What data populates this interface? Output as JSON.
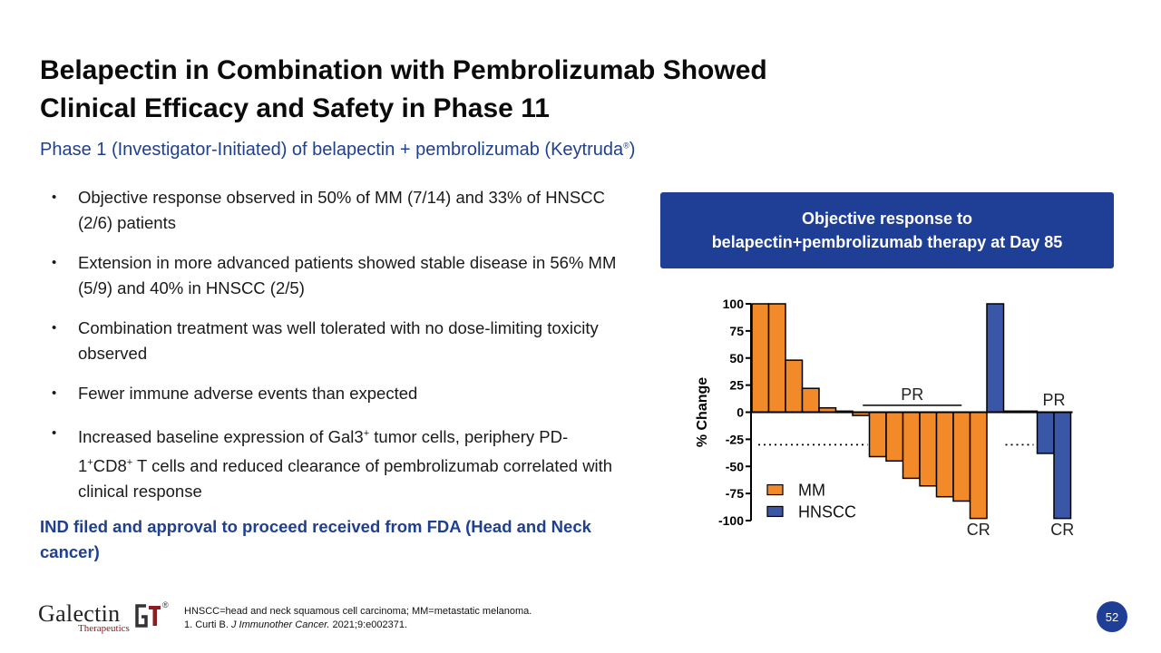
{
  "title": {
    "line1": "Belapectin in Combination with Pembrolizumab Showed",
    "line2": "Clinical Efficacy and Safety in Phase 11"
  },
  "subtitle": {
    "text": "Phase 1 (Investigator-Initiated) of belapectin + pembrolizumab (Keytruda",
    "reg": "®",
    "close": ")"
  },
  "bullet_glyph": "•",
  "bullets": [
    [
      "Objective response observed in 50% of MM (7/14) and 33% of HNSCC (2/6) patients"
    ],
    [
      "Extension in more advanced patients showed stable disease in 56% MM (5/9) and 40% in HNSCC (2/5)"
    ],
    [
      "Combination treatment was well tolerated with no dose-limiting toxicity observed"
    ],
    [
      "Fewer immune adverse events than expected"
    ],
    [
      "Increased baseline expression of Gal3",
      "+",
      " tumor cells, periphery PD-1",
      "+",
      "CD8",
      "+",
      " T cells and reduced clearance of pembrolizumab correlated with clinical response"
    ]
  ],
  "callout": "IND filed and approval to proceed received from FDA (Head and Neck cancer)",
  "box": {
    "line1": "Objective response to",
    "line2": "belapectin+pembrolizumab therapy at Day 85"
  },
  "chart_data": {
    "type": "bar",
    "title": "",
    "xlabel": "",
    "ylabel": "% Change",
    "ylim": [
      -100,
      100
    ],
    "yticks": [
      100,
      75,
      50,
      25,
      0,
      -25,
      -50,
      -75,
      -100
    ],
    "reference_line": -30,
    "series": [
      {
        "name": "MM",
        "color": "#f28a2a",
        "values": [
          100,
          100,
          48,
          22,
          4,
          1,
          -3,
          -41,
          -45,
          -61,
          -68,
          -78,
          -82,
          -98
        ]
      },
      {
        "name": "HNSCC",
        "color": "#3a57a7",
        "values": [
          100,
          1,
          1,
          -38,
          -98
        ]
      }
    ],
    "annotations": [
      "PR",
      "PR",
      "CR",
      "CR"
    ],
    "legend": [
      "MM",
      "HNSCC"
    ]
  },
  "footer": {
    "line1": "HNSCC=head and neck squamous cell carcinoma; MM=metastatic melanoma.",
    "line2_pre": "1. Curti B. ",
    "line2_journal": "J Immunother Cancer.",
    "line2_post": " 2021;9:e002371."
  },
  "logo": {
    "word": "Galectin",
    "sub": "Therapeutics",
    "mark": "GT",
    "reg": "®"
  },
  "page_number": "52"
}
